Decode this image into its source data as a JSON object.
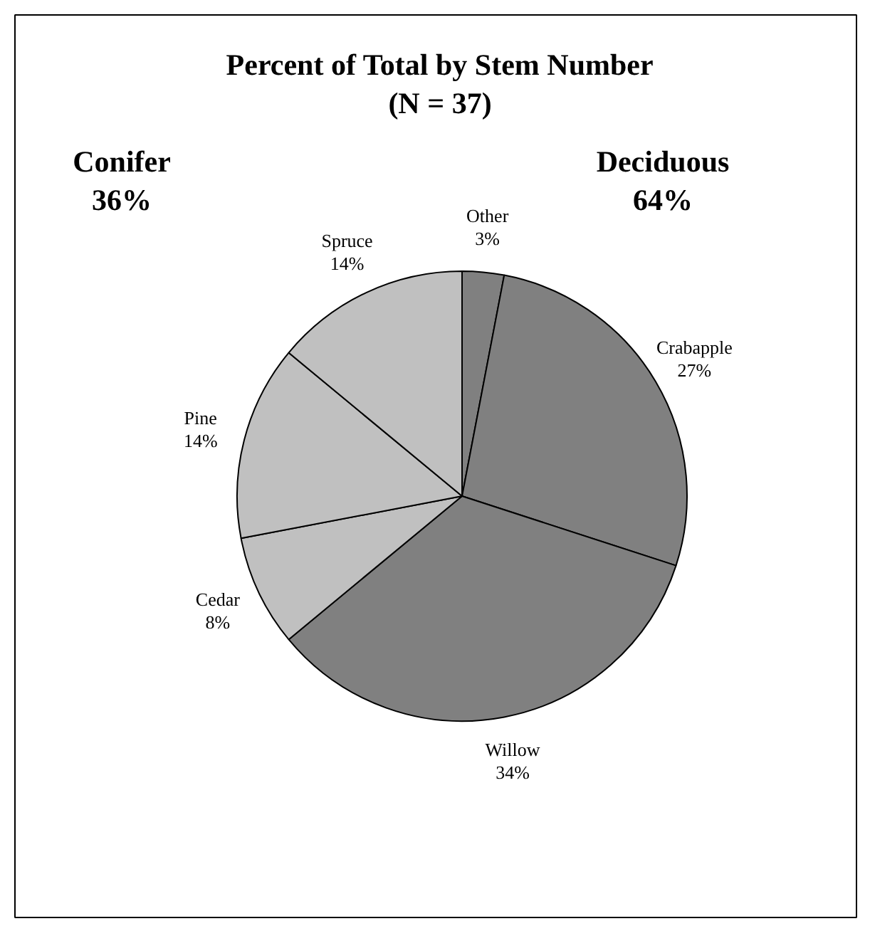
{
  "chart_data": {
    "type": "pie",
    "title": "Percent of Total by Stem Number",
    "subtitle": "(N = 37)",
    "categories": [
      "Other",
      "Crabapple",
      "Willow",
      "Cedar",
      "Pine",
      "Spruce"
    ],
    "values": [
      3,
      27,
      34,
      8,
      14,
      14
    ],
    "value_labels": [
      "3%",
      "27%",
      "34%",
      "8%",
      "14%",
      "14%"
    ],
    "colors": [
      "#808080",
      "#808080",
      "#808080",
      "#c0c0c0",
      "#c0c0c0",
      "#c0c0c0"
    ],
    "annotations": [
      "Conifer\n36%",
      "Deciduous\n64%"
    ]
  }
}
